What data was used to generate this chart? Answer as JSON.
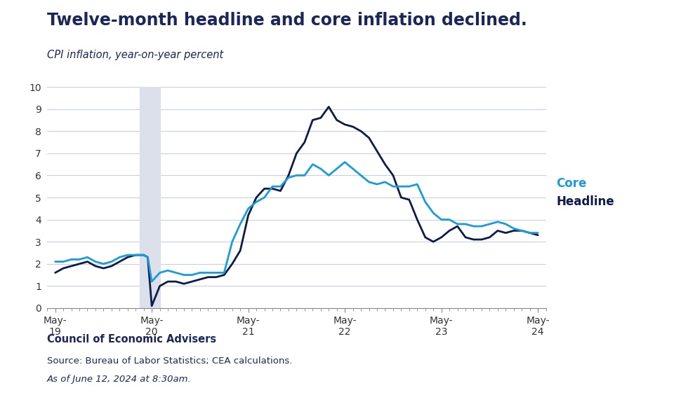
{
  "title": "Twelve-month headline and core inflation declined.",
  "subtitle": "CPI inflation, year-on-year percent",
  "footer_org": "Council of Economic Advisers",
  "footer_source": "Source: Bureau of Labor Statistics; CEA calculations.",
  "footer_date": "As of June 12, 2024 at 8:30am.",
  "ylim": [
    0,
    10
  ],
  "yticks": [
    0,
    1,
    2,
    3,
    4,
    5,
    6,
    7,
    8,
    9,
    10
  ],
  "background_color": "#ffffff",
  "title_color": "#1a2758",
  "grid_color": "#c8d0dc",
  "shade_color": "#dce0ea",
  "core_color": "#1a9cd8",
  "headline_color": "#0d1b4b",
  "legend_core_label": "Core",
  "legend_headline_label": "Headline",
  "xtick_labels": [
    "May-\n19",
    "May-\n20",
    "May-\n21",
    "May-\n22",
    "May-\n23",
    "May-\n24"
  ],
  "xtick_positions": [
    0,
    12,
    24,
    36,
    48,
    60
  ],
  "shade_xmin": 10.5,
  "shade_xmax": 13.0,
  "headline_x": [
    0,
    1,
    2,
    3,
    4,
    5,
    6,
    7,
    8,
    9,
    10,
    11,
    11.5,
    12,
    13,
    14,
    15,
    16,
    17,
    18,
    19,
    20,
    21,
    22,
    23,
    24,
    25,
    26,
    27,
    28,
    29,
    30,
    31,
    32,
    33,
    34,
    35,
    36,
    37,
    38,
    39,
    40,
    41,
    42,
    43,
    44,
    45,
    46,
    47,
    48,
    49,
    50,
    51,
    52,
    53,
    54,
    55,
    56,
    57,
    58,
    59,
    60
  ],
  "headline_y": [
    1.6,
    1.8,
    1.9,
    2.0,
    2.1,
    1.9,
    1.8,
    1.9,
    2.1,
    2.3,
    2.4,
    2.4,
    2.3,
    0.1,
    1.0,
    1.2,
    1.2,
    1.1,
    1.2,
    1.3,
    1.4,
    1.4,
    1.5,
    2.0,
    2.6,
    4.2,
    5.0,
    5.4,
    5.4,
    5.3,
    6.0,
    7.0,
    7.5,
    8.5,
    8.6,
    9.1,
    8.5,
    8.3,
    8.2,
    8.0,
    7.7,
    7.1,
    6.5,
    6.0,
    5.0,
    4.9,
    4.0,
    3.2,
    3.0,
    3.2,
    3.5,
    3.7,
    3.2,
    3.1,
    3.1,
    3.2,
    3.5,
    3.4,
    3.5,
    3.5,
    3.4,
    3.3
  ],
  "core_x": [
    0,
    1,
    2,
    3,
    4,
    5,
    6,
    7,
    8,
    9,
    10,
    11,
    11.5,
    12,
    13,
    14,
    15,
    16,
    17,
    18,
    19,
    20,
    21,
    22,
    23,
    24,
    25,
    26,
    27,
    28,
    29,
    30,
    31,
    32,
    33,
    34,
    35,
    36,
    37,
    38,
    39,
    40,
    41,
    42,
    43,
    44,
    45,
    46,
    47,
    48,
    49,
    50,
    51,
    52,
    53,
    54,
    55,
    56,
    57,
    58,
    59,
    60
  ],
  "core_y": [
    2.1,
    2.1,
    2.2,
    2.2,
    2.3,
    2.1,
    2.0,
    2.1,
    2.3,
    2.4,
    2.4,
    2.4,
    2.3,
    1.2,
    1.6,
    1.7,
    1.6,
    1.5,
    1.5,
    1.6,
    1.6,
    1.6,
    1.6,
    3.0,
    3.8,
    4.5,
    4.8,
    5.0,
    5.5,
    5.5,
    5.9,
    6.0,
    6.0,
    6.5,
    6.3,
    6.0,
    6.3,
    6.6,
    6.3,
    6.0,
    5.7,
    5.6,
    5.7,
    5.5,
    5.5,
    5.5,
    5.6,
    4.8,
    4.3,
    4.0,
    4.0,
    3.8,
    3.8,
    3.7,
    3.7,
    3.8,
    3.9,
    3.8,
    3.6,
    3.5,
    3.4,
    3.4
  ]
}
